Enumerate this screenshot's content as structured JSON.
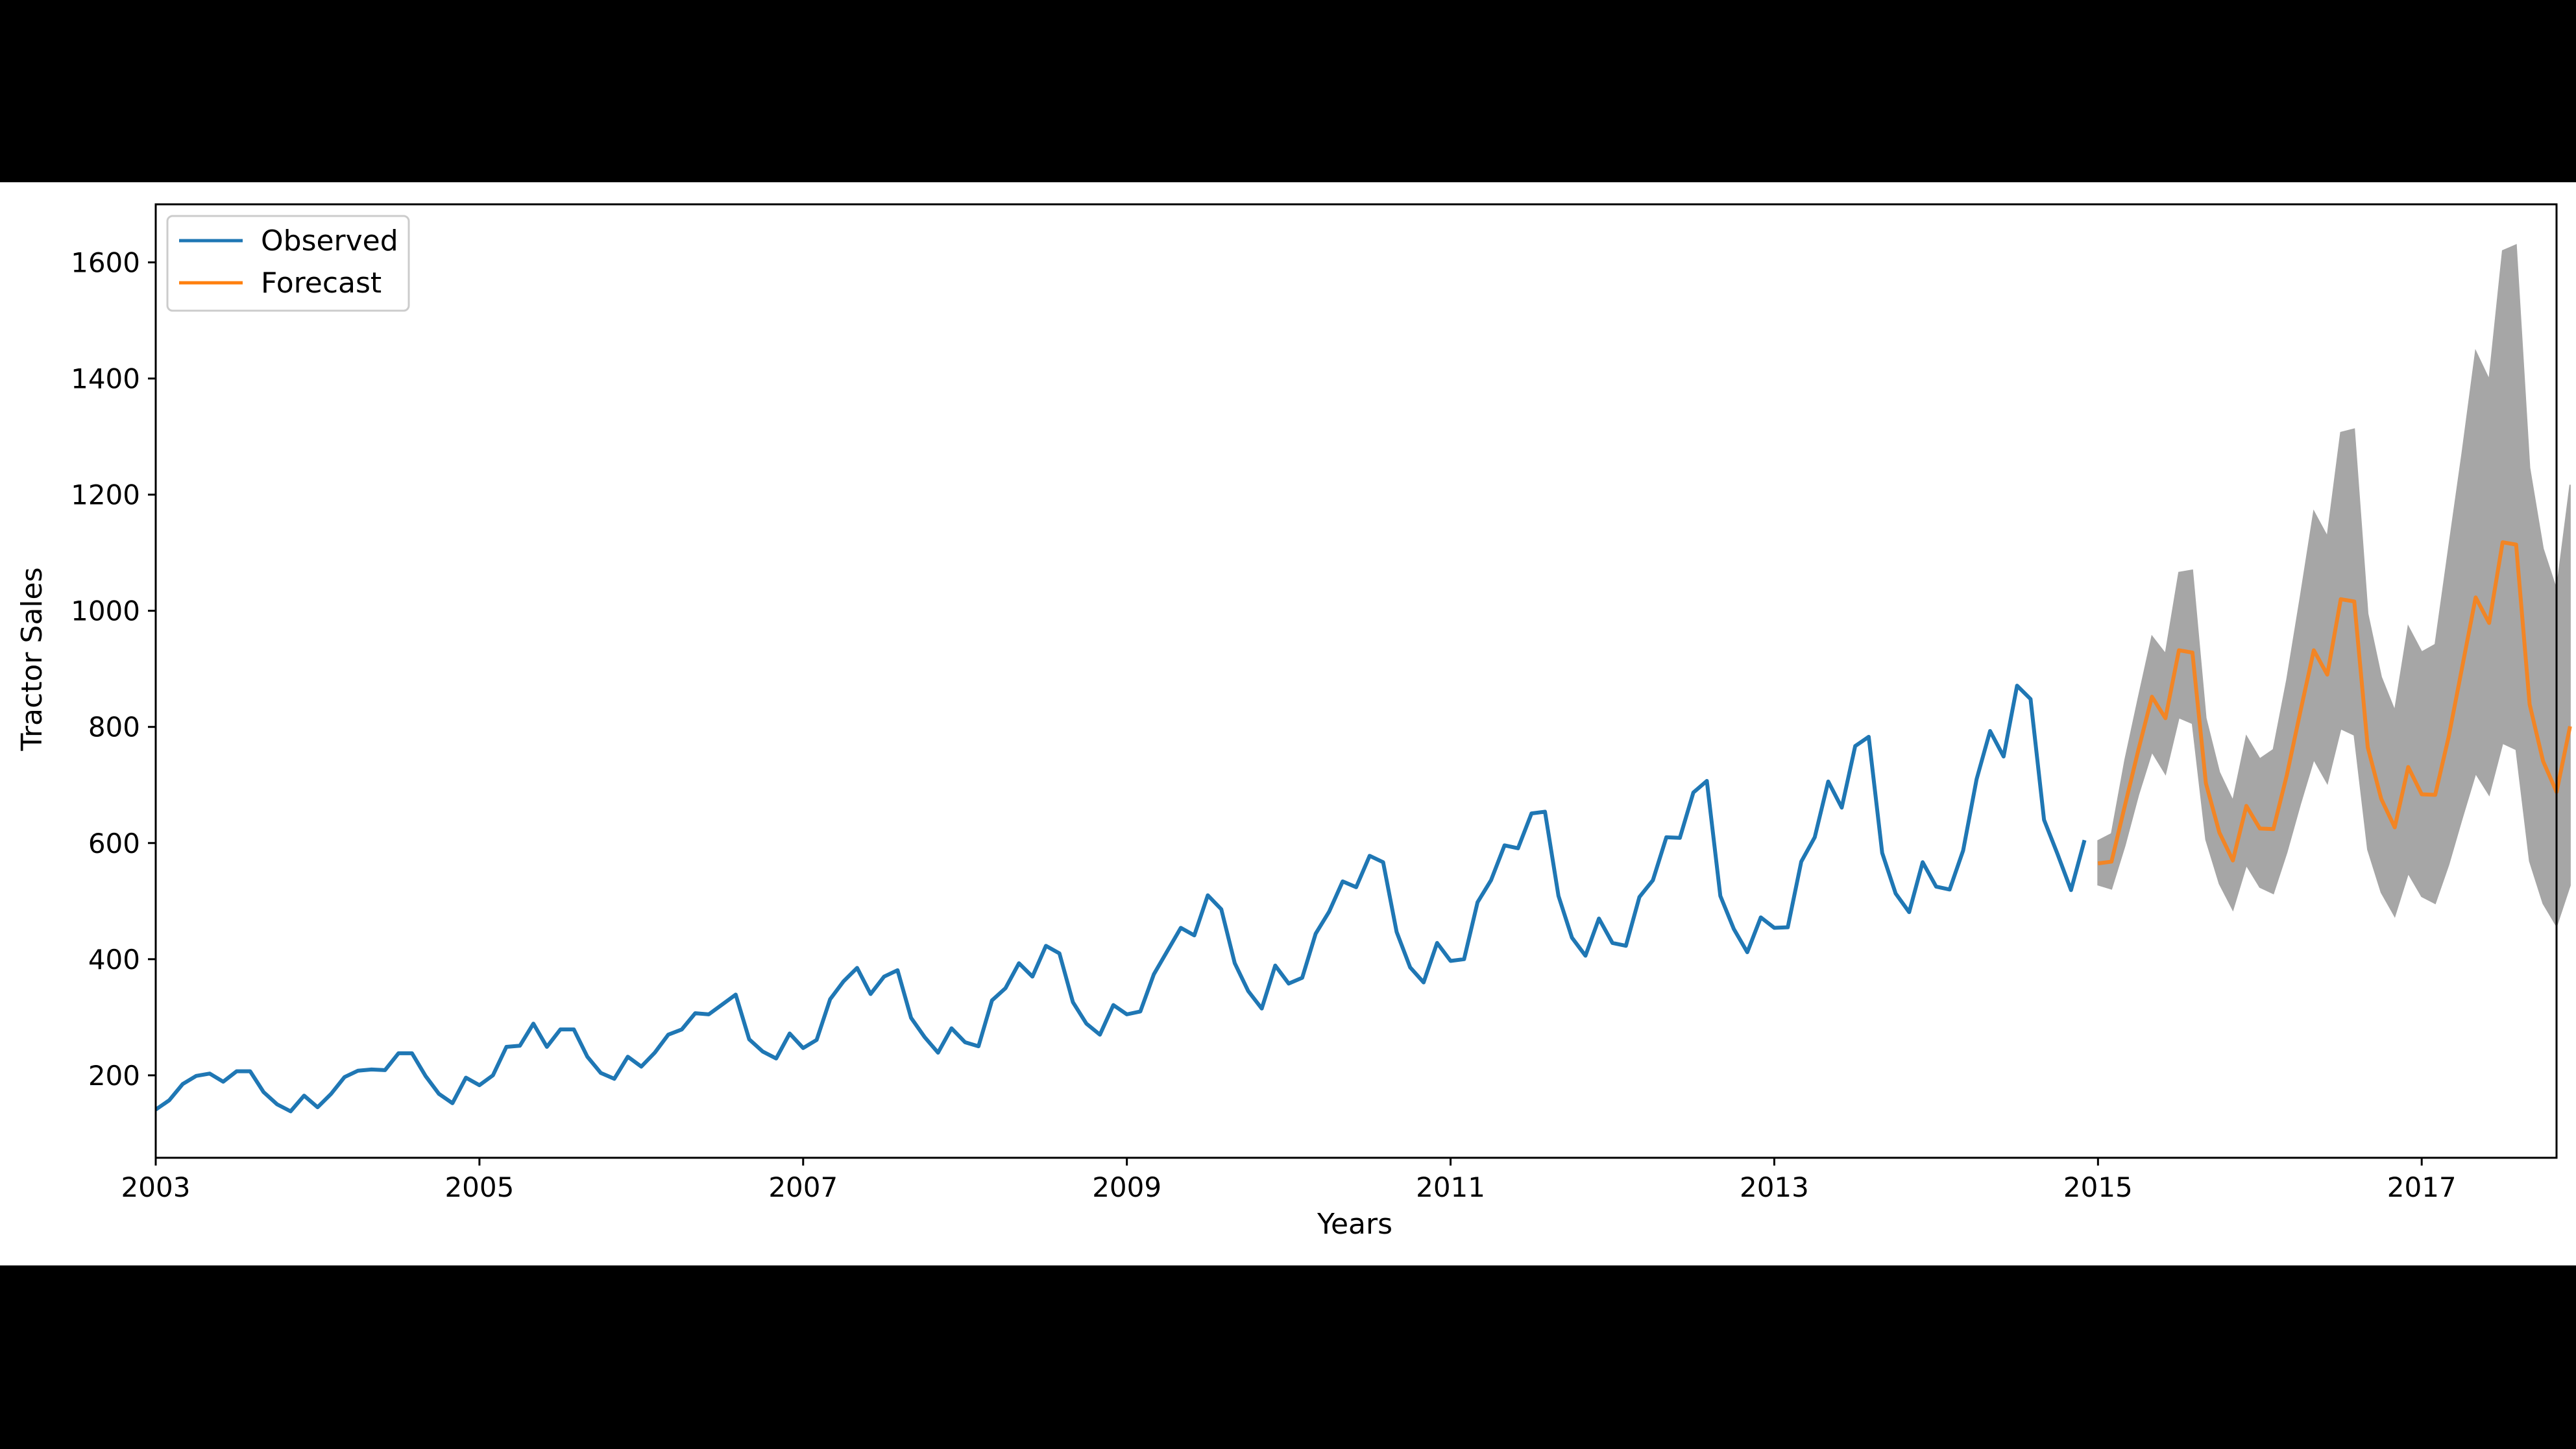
{
  "chart_data": {
    "type": "line",
    "title": "",
    "xlabel": "Years",
    "ylabel": "Tractor Sales",
    "xlim": [
      2003.0,
      2017.833
    ],
    "ylim": [
      58,
      1700
    ],
    "x_ticks": [
      "2003",
      "2005",
      "2007",
      "2009",
      "2011",
      "2013",
      "2015",
      "2017"
    ],
    "y_ticks": [
      200,
      400,
      600,
      800,
      1000,
      1200,
      1400,
      1600
    ],
    "legend_position": "upper-left",
    "colors": {
      "observed": "#1f77b4",
      "forecast": "#ff7f0e",
      "confidence_band": "#a6a6a6",
      "figure_background": "#ffffff",
      "outer_background": "#000000"
    },
    "observed_start": "2003-01",
    "forecast_start": "2015-01",
    "series": [
      {
        "name": "Observed",
        "values": [
          141,
          157,
          185,
          199,
          203,
          189,
          207,
          207,
          171,
          150,
          138,
          165,
          145,
          168,
          197,
          208,
          210,
          209,
          238,
          238,
          199,
          168,
          152,
          196,
          183,
          200,
          249,
          251,
          289,
          249,
          279,
          279,
          232,
          204,
          194,
          232,
          215,
          239,
          270,
          279,
          307,
          305,
          322,
          339,
          262,
          241,
          229,
          272,
          247,
          261,
          331,
          362,
          385,
          340,
          370,
          381,
          299,
          266,
          239,
          281,
          257,
          250,
          329,
          350,
          393,
          370,
          423,
          410,
          326,
          289,
          270,
          321,
          305,
          310,
          374,
          414,
          454,
          441,
          510,
          486,
          393,
          345,
          315,
          389,
          358,
          368,
          444,
          482,
          534,
          524,
          578,
          567,
          447,
          386,
          360,
          428,
          397,
          400,
          498,
          536,
          596,
          591,
          651,
          654,
          509,
          437,
          406,
          470,
          428,
          423,
          507,
          536,
          610,
          609,
          687,
          707,
          509,
          452,
          412,
          472,
          454,
          455,
          568,
          610,
          706,
          661,
          767,
          783,
          583,
          513,
          481,
          567,
          525,
          520,
          587,
          710,
          793,
          749,
          871,
          848,
          640,
          581,
          519,
          605
        ]
      },
      {
        "name": "Forecast",
        "values": [
          565,
          568,
          665,
          761,
          852,
          815,
          932,
          928,
          703,
          618,
          570,
          664,
          625,
          624,
          717,
          826,
          932,
          890,
          1020,
          1016,
          765,
          676,
          627,
          731,
          684,
          683,
          783,
          903,
          1023,
          979,
          1118,
          1114,
          839,
          741,
          688,
          801
        ]
      },
      {
        "name": "",
        "role": "confidence_lower",
        "values": [
          528,
          521,
          596,
          683,
          757,
          719,
          816,
          806,
          606,
          530,
          485,
          562,
          524,
          513,
          584,
          667,
          744,
          703,
          797,
          786,
          589,
          515,
          474,
          548,
          508,
          496,
          563,
          643,
          720,
          683,
          772,
          761,
          569,
          496,
          457,
          527
        ]
      },
      {
        "name": "",
        "role": "confidence_upper",
        "values": [
          604,
          616,
          743,
          851,
          956,
          926,
          1066,
          1070,
          815,
          722,
          673,
          784,
          745,
          761,
          881,
          1023,
          1171,
          1128,
          1307,
          1313,
          995,
          886,
          828,
          973,
          929,
          942,
          1108,
          1272,
          1447,
          1398,
          1620,
          1630,
          1246,
          1107,
          1036,
          1217
        ]
      }
    ]
  }
}
